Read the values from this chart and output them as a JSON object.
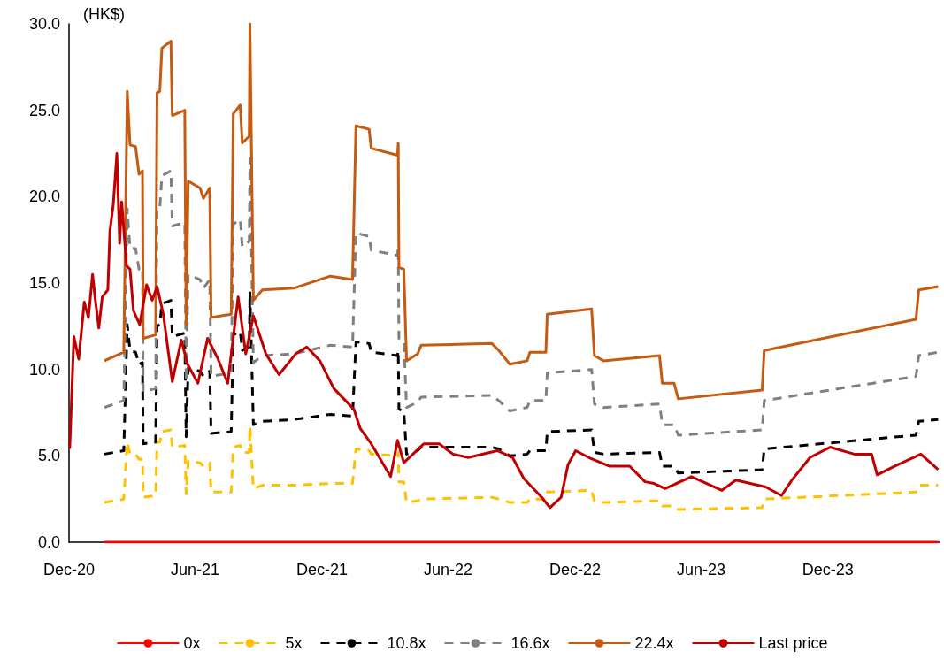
{
  "chart_data": {
    "type": "line",
    "ylabel": "(HK$)",
    "marker": "none",
    "grid": false,
    "legend": "bottom",
    "xlim": [
      "2020-12-01",
      "2024-05-10"
    ],
    "xticks": [
      {
        "value": "2020-12-01",
        "label": "Dec-20"
      },
      {
        "value": "2021-06-01",
        "label": "Jun-21"
      },
      {
        "value": "2021-12-01",
        "label": "Dec-21"
      },
      {
        "value": "2022-06-01",
        "label": "Jun-22"
      },
      {
        "value": "2022-12-01",
        "label": "Dec-22"
      },
      {
        "value": "2023-06-01",
        "label": "Jun-23"
      },
      {
        "value": "2023-12-01",
        "label": "Dec-23"
      }
    ],
    "ylim": [
      0,
      30
    ],
    "yticks": [
      {
        "value": 0,
        "label": "0.0"
      },
      {
        "value": 5,
        "label": "5.0"
      },
      {
        "value": 10,
        "label": "10.0"
      },
      {
        "value": 15,
        "label": "15.0"
      },
      {
        "value": 20,
        "label": "20.0"
      },
      {
        "value": 25,
        "label": "25.0"
      },
      {
        "value": 30,
        "label": "30.0"
      }
    ],
    "x": [
      "2021-01-21",
      "2021-02-18",
      "2021-02-23",
      "2021-02-27",
      "2021-03-07",
      "2021-03-12",
      "2021-03-17",
      "2021-03-18",
      "2021-04-05",
      "2021-04-07",
      "2021-04-11",
      "2021-04-14",
      "2021-04-27",
      "2021-04-29",
      "2021-05-17",
      "2021-05-19",
      "2021-05-22",
      "2021-06-08",
      "2021-06-13",
      "2021-06-22",
      "2021-06-24",
      "2021-07-23",
      "2021-07-26",
      "2021-08-05",
      "2021-08-08",
      "2021-08-18",
      "2021-08-19",
      "2021-08-24",
      "2021-09-06",
      "2021-10-21",
      "2021-12-13",
      "2022-01-14",
      "2022-01-19",
      "2022-02-07",
      "2022-02-10",
      "2022-03-20",
      "2022-03-21",
      "2022-03-22",
      "2022-03-29",
      "2022-04-02",
      "2022-04-18",
      "2022-04-23",
      "2022-08-03",
      "2022-08-13",
      "2022-08-29",
      "2022-09-23",
      "2022-09-27",
      "2022-10-20",
      "2022-10-22",
      "2022-12-25",
      "2022-12-29",
      "2023-01-11",
      "2023-04-02",
      "2023-04-06",
      "2023-04-23",
      "2023-04-29",
      "2023-08-28",
      "2023-08-31",
      "2024-04-06",
      "2024-04-10",
      "2024-05-08"
    ],
    "series": [
      {
        "name": "0x",
        "color": "#ff0000",
        "line_style": "solid",
        "x": [
          "2021-01-21",
          "2024-05-08"
        ],
        "values": [
          0,
          0
        ]
      },
      {
        "name": "5x",
        "color": "#ffc000",
        "line_style": "dashed",
        "values": [
          2.3,
          2.5,
          5.8,
          5.1,
          5.1,
          4.8,
          4.8,
          2.6,
          2.7,
          5.8,
          5.8,
          6.4,
          6.5,
          5.5,
          5.6,
          2.8,
          4.7,
          4.6,
          4.4,
          4.6,
          2.9,
          2.9,
          5.5,
          5.6,
          5.2,
          5.2,
          6.7,
          3.1,
          3.3,
          3.3,
          3.4,
          3.4,
          5.4,
          5.3,
          5.1,
          5.0,
          5.2,
          3.5,
          3.5,
          2.3,
          2.4,
          2.5,
          2.6,
          2.5,
          2.3,
          2.3,
          2.5,
          2.5,
          2.9,
          3.0,
          2.4,
          2.3,
          2.4,
          2.1,
          2.1,
          1.9,
          2.0,
          2.5,
          2.9,
          3.3,
          3.3
        ]
      },
      {
        "name": "10.8x",
        "color": "#000000",
        "line_style": "dashed",
        "values": [
          5.1,
          5.3,
          12.6,
          11.1,
          11.0,
          10.3,
          10.4,
          5.7,
          5.8,
          12.5,
          12.6,
          13.8,
          14.0,
          11.9,
          12.1,
          6.1,
          10.1,
          9.9,
          9.6,
          9.9,
          6.3,
          6.4,
          12.0,
          12.2,
          11.1,
          11.3,
          14.5,
          6.8,
          7.0,
          7.1,
          7.4,
          7.3,
          11.6,
          11.5,
          11.0,
          10.8,
          11.1,
          7.7,
          7.6,
          5.1,
          5.3,
          5.5,
          5.5,
          5.4,
          5.0,
          5.1,
          5.3,
          5.3,
          6.4,
          6.5,
          5.2,
          5.1,
          5.2,
          4.4,
          4.4,
          4.0,
          4.2,
          5.4,
          6.2,
          7.0,
          7.1
        ]
      },
      {
        "name": "16.6x",
        "color": "#808080",
        "line_style": "dashed",
        "values": [
          7.8,
          8.2,
          19.3,
          17.0,
          17.0,
          15.8,
          15.9,
          8.7,
          8.9,
          19.3,
          19.3,
          21.2,
          21.5,
          18.3,
          18.5,
          9.3,
          15.5,
          15.2,
          14.7,
          15.2,
          9.6,
          9.8,
          18.4,
          18.7,
          17.1,
          17.4,
          22.2,
          10.4,
          10.8,
          10.9,
          11.4,
          11.3,
          17.9,
          17.7,
          16.9,
          16.6,
          17.1,
          11.8,
          11.7,
          7.8,
          8.1,
          8.4,
          8.5,
          8.2,
          7.6,
          7.8,
          8.2,
          8.2,
          9.8,
          10.0,
          8.0,
          7.8,
          8.0,
          6.8,
          6.8,
          6.2,
          6.5,
          8.2,
          9.6,
          10.8,
          11.0
        ]
      },
      {
        "name": "22.4x",
        "color": "#c55a11",
        "line_style": "solid",
        "values": [
          10.5,
          11.0,
          26.1,
          23.0,
          22.9,
          21.3,
          21.5,
          11.8,
          12.0,
          26.0,
          26.1,
          28.6,
          29.0,
          24.7,
          25.0,
          12.6,
          20.9,
          20.5,
          19.9,
          20.5,
          13.0,
          13.2,
          24.8,
          25.3,
          23.1,
          23.5,
          30.0,
          14.0,
          14.6,
          14.7,
          15.4,
          15.2,
          24.1,
          23.9,
          22.8,
          22.4,
          23.1,
          15.9,
          15.8,
          10.5,
          10.9,
          11.4,
          11.5,
          11.1,
          10.3,
          10.5,
          11.0,
          11.0,
          13.2,
          13.5,
          10.8,
          10.5,
          10.8,
          9.2,
          9.2,
          8.3,
          8.8,
          11.1,
          12.9,
          14.6,
          14.8
        ]
      },
      {
        "name": "Last price",
        "color": "#c00000",
        "line_style": "solid",
        "x": [
          "2020-12-02",
          "2020-12-08",
          "2020-12-15",
          "2020-12-23",
          "2020-12-29",
          "2021-01-04",
          "2021-01-08",
          "2021-01-13",
          "2021-01-18",
          "2021-01-26",
          "2021-01-29",
          "2021-02-03",
          "2021-02-08",
          "2021-02-12",
          "2021-02-15",
          "2021-02-22",
          "2021-02-27",
          "2021-03-04",
          "2021-03-13",
          "2021-03-23",
          "2021-03-31",
          "2021-04-07",
          "2021-04-16",
          "2021-04-29",
          "2021-05-12",
          "2021-05-21",
          "2021-06-05",
          "2021-06-19",
          "2021-07-04",
          "2021-07-18",
          "2021-08-02",
          "2021-08-13",
          "2021-08-24",
          "2021-09-11",
          "2021-09-30",
          "2021-10-24",
          "2021-11-09",
          "2021-11-28",
          "2021-12-18",
          "2022-01-16",
          "2022-01-25",
          "2022-02-10",
          "2022-03-10",
          "2022-03-20",
          "2022-03-29",
          "2022-04-27",
          "2022-05-19",
          "2022-06-08",
          "2022-06-30",
          "2022-08-11",
          "2022-09-02",
          "2022-09-18",
          "2022-10-14",
          "2022-10-26",
          "2022-11-11",
          "2022-11-21",
          "2022-12-02",
          "2022-12-21",
          "2023-01-20",
          "2023-02-18",
          "2023-03-12",
          "2023-03-25",
          "2023-04-10",
          "2023-05-18",
          "2023-07-01",
          "2023-07-21",
          "2023-09-02",
          "2023-09-25",
          "2023-10-10",
          "2023-11-05",
          "2023-12-04",
          "2024-01-08",
          "2024-02-02",
          "2024-02-10",
          "2024-03-06",
          "2024-04-13",
          "2024-05-08"
        ],
        "values": [
          5.4,
          11.9,
          10.6,
          13.9,
          13.0,
          15.5,
          14.0,
          12.4,
          14.2,
          14.6,
          18.0,
          19.6,
          22.5,
          17.3,
          19.7,
          16.0,
          15.8,
          13.4,
          12.6,
          14.9,
          14.0,
          14.8,
          13.2,
          9.3,
          11.7,
          10.3,
          9.2,
          11.8,
          10.6,
          9.2,
          14.2,
          10.9,
          13.1,
          10.9,
          9.7,
          10.9,
          11.3,
          10.5,
          8.9,
          7.7,
          6.6,
          5.7,
          3.8,
          5.9,
          4.6,
          5.7,
          5.7,
          5.1,
          4.9,
          5.3,
          4.9,
          3.7,
          2.6,
          2.0,
          2.6,
          4.5,
          5.3,
          4.9,
          4.4,
          4.4,
          3.5,
          3.4,
          3.1,
          3.8,
          3.0,
          3.6,
          3.2,
          2.7,
          3.6,
          4.9,
          5.5,
          5.1,
          5.1,
          3.9,
          4.4,
          5.1,
          4.2
        ]
      }
    ]
  }
}
